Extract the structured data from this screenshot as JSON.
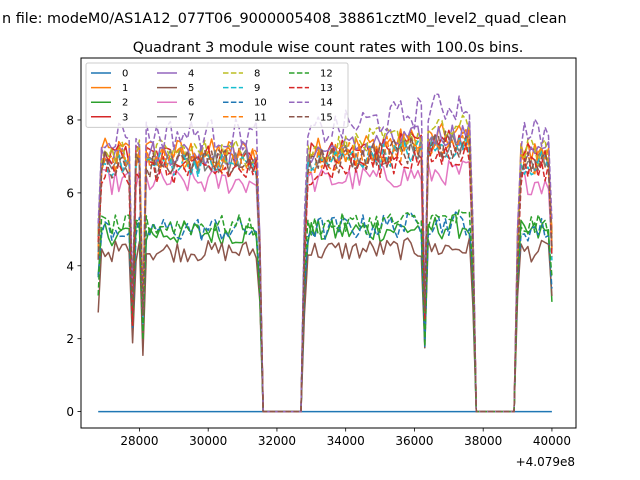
{
  "chart_data": {
    "type": "line",
    "suptitle": "n file: modeM0/AS1A12_077T06_9000005408_38861cztM0_level2_quad_clean",
    "title": "Quadrant 3 module wise count rates with 100.0s bins.",
    "xlabel": "",
    "ylabel": "",
    "x_offset_label": "+4.079e8",
    "xlim": [
      26300,
      40700
    ],
    "ylim": [
      -0.45,
      9.7
    ],
    "xticks": [
      "28000",
      "30000",
      "32000",
      "34000",
      "36000",
      "38000",
      "40000"
    ],
    "yticks": [
      "0",
      "2",
      "4",
      "6",
      "8"
    ],
    "legend_position": "upper-left",
    "legend_columns": 4,
    "segments": [
      {
        "start": 26800,
        "end": 31500
      },
      {
        "start": 32800,
        "end": 37700
      },
      {
        "start": 39000,
        "end": 40000
      }
    ],
    "dips": [
      {
        "x": 27800,
        "segment": 0
      },
      {
        "x": 28100,
        "segment": 0
      },
      {
        "x": 36300,
        "segment": 1
      }
    ],
    "series": [
      {
        "name": "0",
        "color": "#1f77b4",
        "dashed": false,
        "level": 0.0,
        "noise": 0.0,
        "trend": 0.0
      },
      {
        "name": "1",
        "color": "#ff7f0e",
        "dashed": false,
        "level": 7.1,
        "noise": 0.4,
        "trend": 0.5
      },
      {
        "name": "2",
        "color": "#2ca02c",
        "dashed": false,
        "level": 4.9,
        "noise": 0.35,
        "trend": 0.2
      },
      {
        "name": "3",
        "color": "#d62728",
        "dashed": false,
        "level": 7.0,
        "noise": 0.35,
        "trend": 0.5
      },
      {
        "name": "4",
        "color": "#9467bd",
        "dashed": false,
        "level": 7.1,
        "noise": 0.35,
        "trend": 0.6
      },
      {
        "name": "5",
        "color": "#8c564b",
        "dashed": false,
        "level": 4.4,
        "noise": 0.3,
        "trend": 0.1
      },
      {
        "name": "6",
        "color": "#e377c2",
        "dashed": false,
        "level": 6.3,
        "noise": 0.35,
        "trend": 0.3
      },
      {
        "name": "7",
        "color": "#7f7f7f",
        "dashed": false,
        "level": 6.9,
        "noise": 0.35,
        "trend": 0.5
      },
      {
        "name": "8",
        "color": "#bcbd22",
        "dashed": true,
        "level": 7.1,
        "noise": 0.4,
        "trend": 0.7
      },
      {
        "name": "9",
        "color": "#17becf",
        "dashed": true,
        "level": 6.8,
        "noise": 0.35,
        "trend": 0.5
      },
      {
        "name": "10",
        "color": "#1f77b4",
        "dashed": true,
        "level": 5.0,
        "noise": 0.35,
        "trend": 0.2
      },
      {
        "name": "11",
        "color": "#ff7f0e",
        "dashed": true,
        "level": 6.9,
        "noise": 0.4,
        "trend": 0.6
      },
      {
        "name": "12",
        "color": "#2ca02c",
        "dashed": true,
        "level": 5.1,
        "noise": 0.3,
        "trend": 0.2
      },
      {
        "name": "13",
        "color": "#d62728",
        "dashed": true,
        "level": 6.6,
        "noise": 0.4,
        "trend": 0.5
      },
      {
        "name": "14",
        "color": "#9467bd",
        "dashed": true,
        "level": 7.6,
        "noise": 0.45,
        "trend": 0.9
      },
      {
        "name": "15",
        "color": "#8c564b",
        "dashed": true,
        "level": 6.8,
        "noise": 0.4,
        "trend": 0.6
      }
    ],
    "x_step": 100,
    "gap_value": 0
  }
}
